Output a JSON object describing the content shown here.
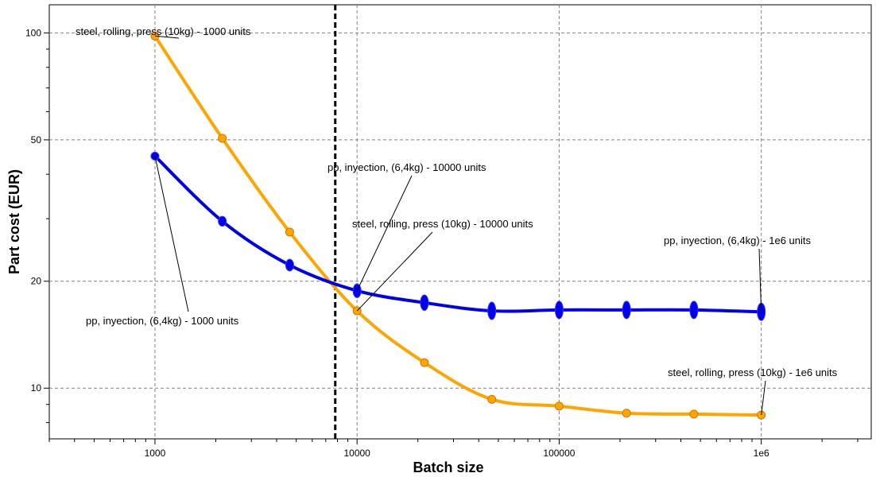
{
  "chart_data": {
    "type": "line",
    "x_scale": "log",
    "y_scale": "log",
    "xlabel": "Batch size",
    "ylabel": "Part cost (EUR)",
    "xlim": [
      300,
      3500000
    ],
    "ylim": [
      7.2,
      120
    ],
    "x_ticks": [
      1000,
      10000,
      100000,
      1000000
    ],
    "x_tick_labels": [
      "1000",
      "10000",
      "100000",
      "1e6"
    ],
    "y_ticks": [
      10,
      20,
      50,
      100
    ],
    "y_tick_labels": [
      "10",
      "20",
      "50",
      "100"
    ],
    "grid": true,
    "legend": "none",
    "crossover_line_x": 7800,
    "series": [
      {
        "color": "#ffa500",
        "marker": "circle",
        "x": [
          1000,
          2154,
          4642,
          10000,
          21544,
          46416,
          100000,
          215443,
          464159,
          1000000
        ],
        "y": [
          98,
          50.5,
          27.5,
          16.5,
          11.8,
          9.3,
          8.9,
          8.5,
          8.45,
          8.4
        ]
      },
      {
        "color": "#0000ee",
        "marker": "ellipse",
        "x": [
          1000,
          2154,
          4642,
          10000,
          21544,
          46416,
          100000,
          215443,
          464159,
          1000000
        ],
        "y": [
          45,
          29.5,
          22.2,
          18.8,
          17.4,
          16.5,
          16.6,
          16.6,
          16.6,
          16.4
        ]
      }
    ],
    "annotations": [
      {
        "id": "steel-1000",
        "text": "steel, rolling, press (10kg) - 1000 units",
        "point_x": 1000,
        "point_y": 98,
        "series": 0
      },
      {
        "id": "pp-1000",
        "text": "pp, inyection, (6,4kg) - 1000 units",
        "point_x": 1000,
        "point_y": 45,
        "series": 1
      },
      {
        "id": "pp-10000",
        "text": "pp, inyection, (6,4kg) - 10000 units",
        "point_x": 10000,
        "point_y": 18.8,
        "series": 1
      },
      {
        "id": "steel-10000",
        "text": "steel, rolling, press (10kg) - 10000 units",
        "point_x": 10000,
        "point_y": 16.5,
        "series": 0
      },
      {
        "id": "pp-1e6",
        "text": "pp, inyection, (6,4kg) - 1e6 units",
        "point_x": 1000000,
        "point_y": 16.4,
        "series": 1
      },
      {
        "id": "steel-1e6",
        "text": "steel, rolling, press (10kg) - 1e6 units",
        "point_x": 1000000,
        "point_y": 8.4,
        "series": 0
      }
    ]
  }
}
